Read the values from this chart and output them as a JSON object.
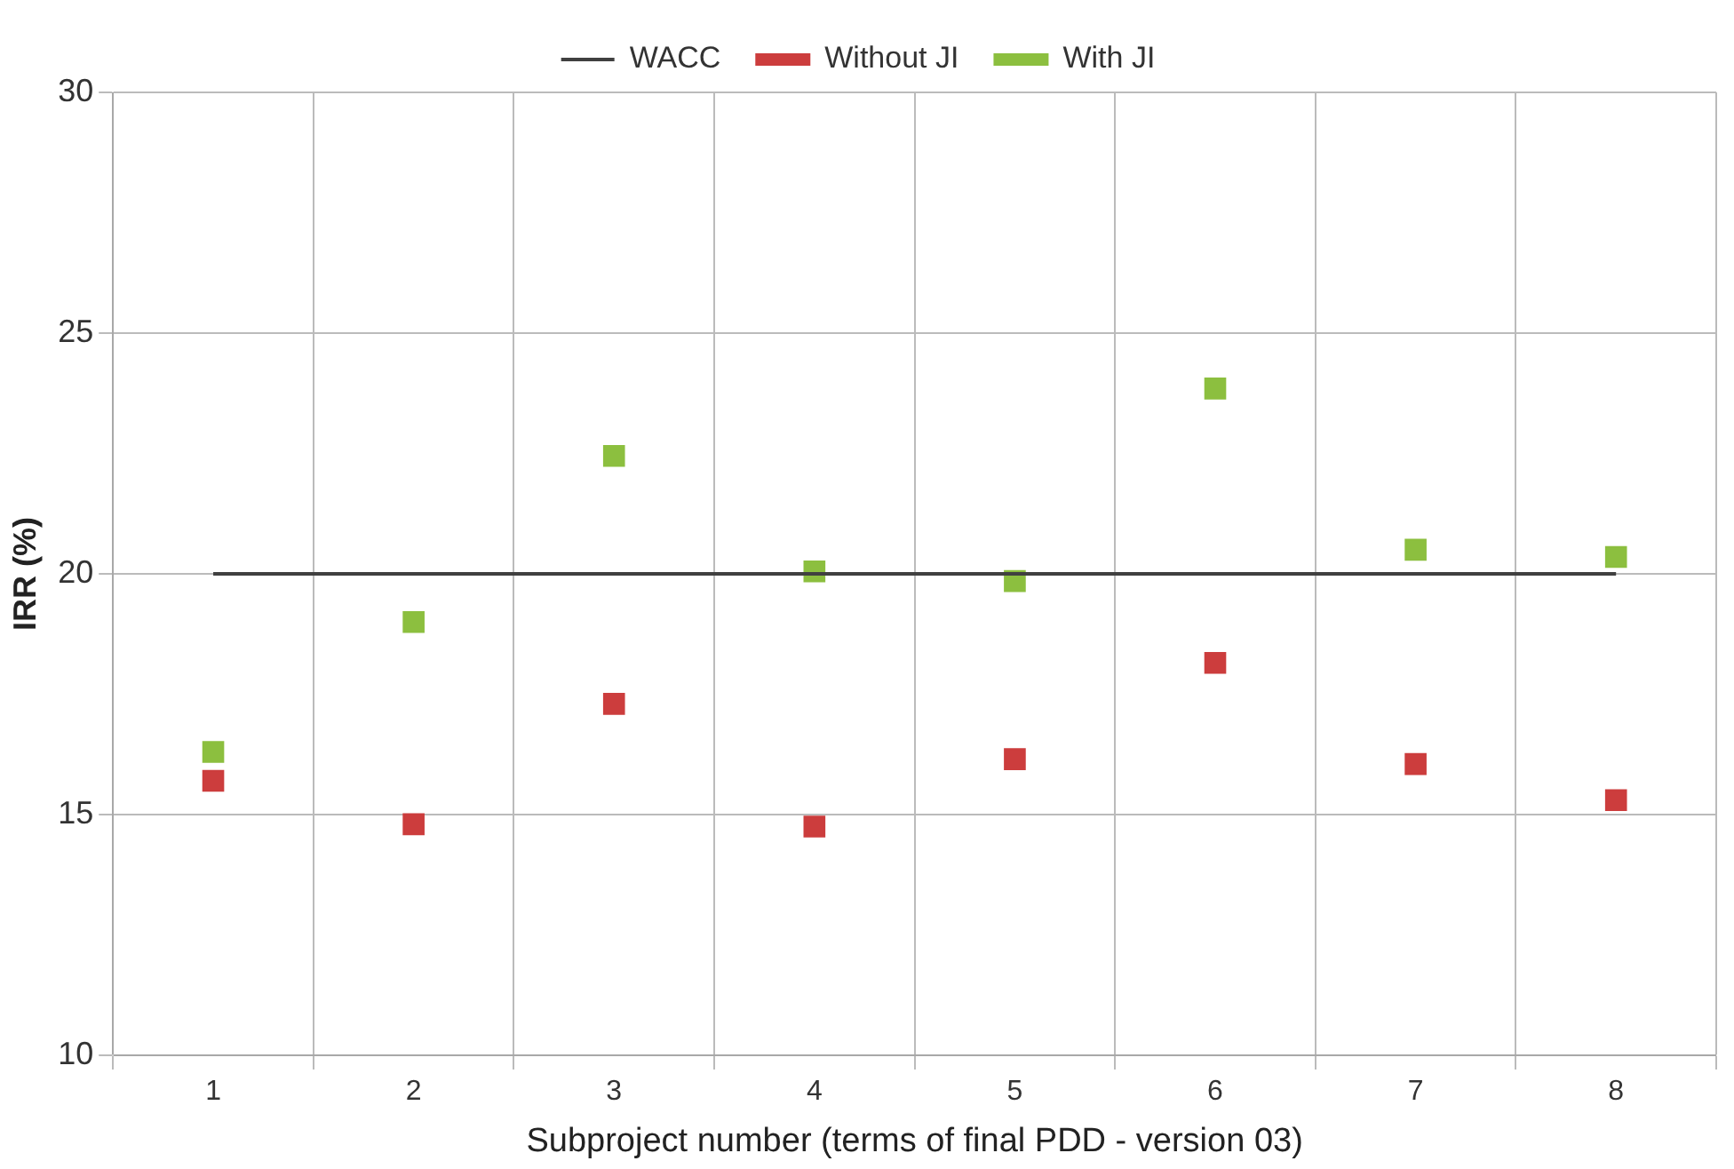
{
  "chart_data": {
    "type": "scatter",
    "xlabel": "Subproject number (terms of final PDD - version 03)",
    "ylabel": "IRR (%)",
    "categories": [
      "1",
      "2",
      "3",
      "4",
      "5",
      "6",
      "7",
      "8"
    ],
    "series": [
      {
        "name": "WACC",
        "type": "line",
        "marker": "none",
        "color": "#404040",
        "values": [
          20,
          20,
          20,
          20,
          20,
          20,
          20,
          20
        ]
      },
      {
        "name": "Without JI",
        "color": "#cc3d3d",
        "values": [
          15.7,
          14.8,
          17.3,
          14.75,
          16.15,
          18.15,
          16.05,
          15.3
        ]
      },
      {
        "name": "With JI",
        "color": "#8cbf3f",
        "values": [
          16.3,
          19.0,
          22.45,
          20.05,
          19.85,
          23.85,
          20.5,
          20.35
        ]
      }
    ],
    "ylim": [
      10,
      30
    ],
    "yticks": [
      10,
      15,
      20,
      25,
      30
    ],
    "grid": true,
    "legend": "top",
    "marker": "square"
  }
}
